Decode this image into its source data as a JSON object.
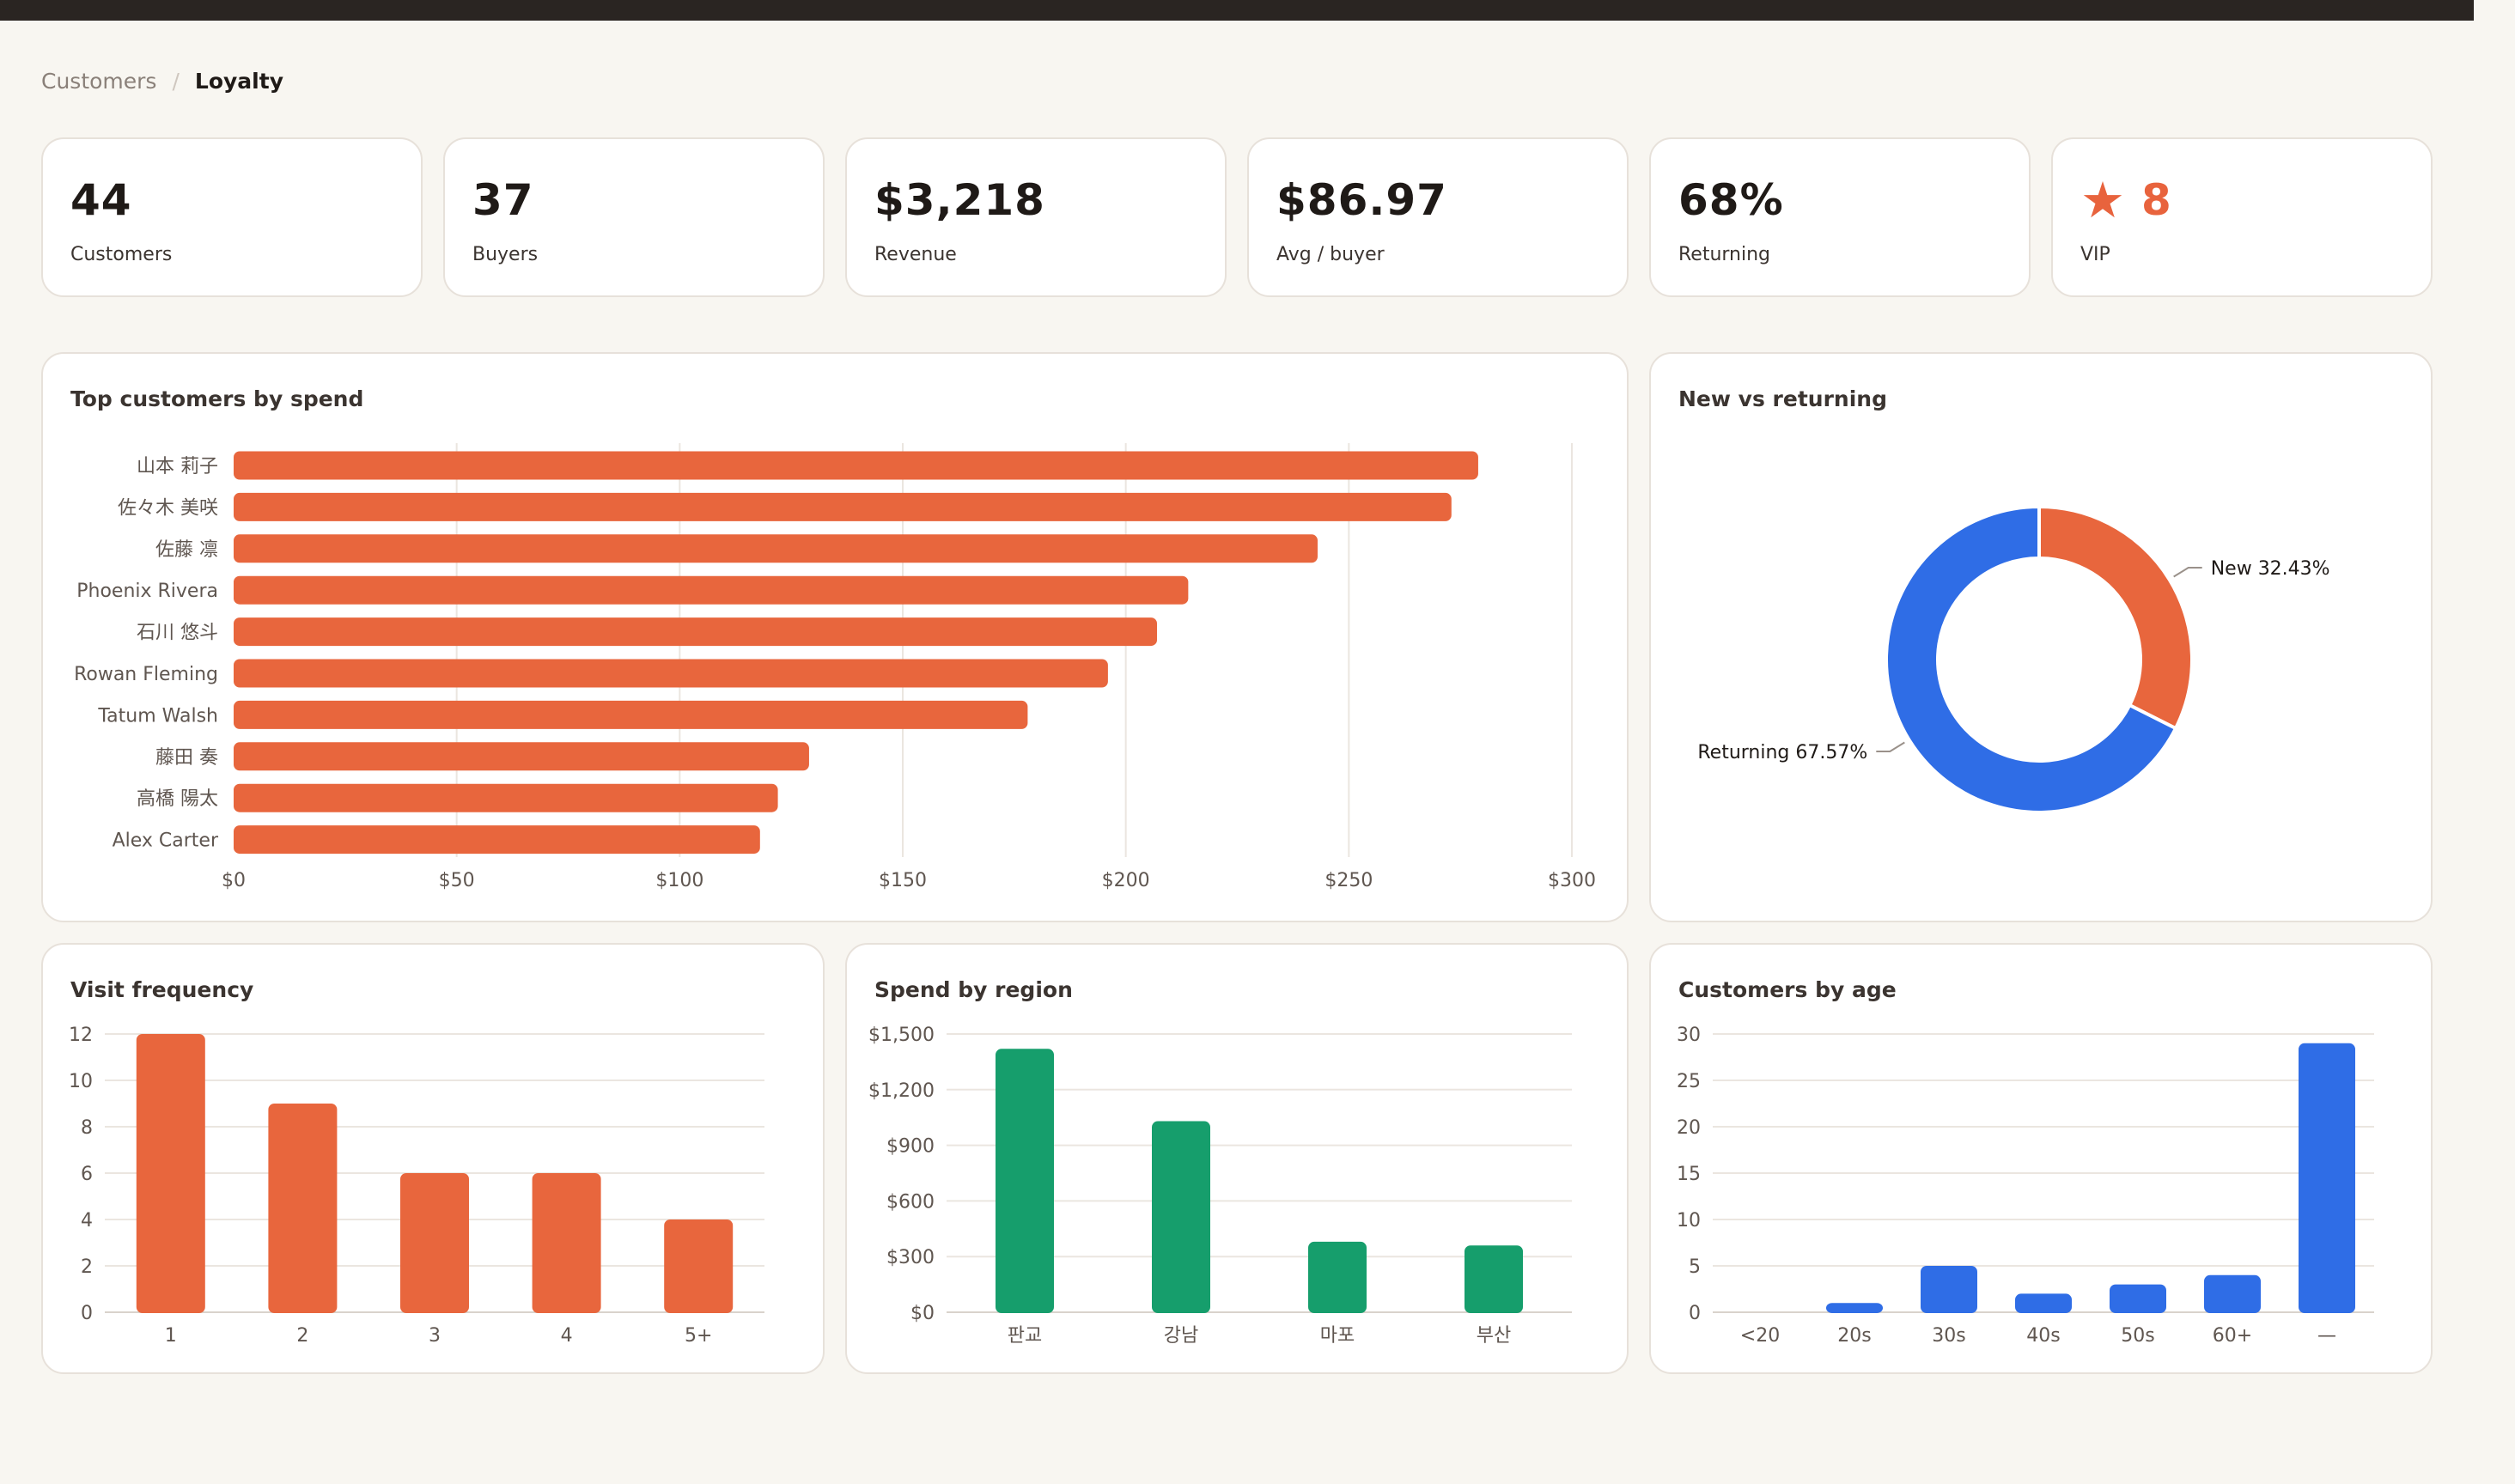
{
  "breadcrumb": {
    "parent": "Customers",
    "separator": "/",
    "current": "Loyalty"
  },
  "kpis": [
    {
      "value": "44",
      "label": "Customers"
    },
    {
      "value": "37",
      "label": "Buyers"
    },
    {
      "value": "$3,218",
      "label": "Revenue"
    },
    {
      "value": "$86.97",
      "label": "Avg / buyer"
    },
    {
      "value": "68%",
      "label": "Returning"
    },
    {
      "value": "8",
      "label": "VIP",
      "icon": "star-icon",
      "color": "#e8633d"
    }
  ],
  "panels": {
    "top_customers": "Top customers by spend",
    "new_vs_returning": "New vs returning",
    "visit_frequency": "Visit frequency",
    "spend_by_region": "Spend by region",
    "customers_by_age": "Customers by age"
  },
  "chart_data": [
    {
      "id": "top_customers",
      "type": "bar",
      "orientation": "horizontal",
      "categories": [
        "山本 莉子",
        "佐々木 美咲",
        "佐藤 凛",
        "Phoenix Rivera",
        "石川 悠斗",
        "Rowan Fleming",
        "Tatum Walsh",
        "藤田 奏",
        "高橋 陽太",
        "Alex Carter"
      ],
      "values": [
        279,
        273,
        243,
        214,
        207,
        196,
        178,
        129,
        122,
        118
      ],
      "xlim": [
        0,
        300
      ],
      "ticks": [
        "$0",
        "$50",
        "$100",
        "$150",
        "$200",
        "$250",
        "$300"
      ],
      "color": "#e8663d",
      "grid": true
    },
    {
      "id": "new_vs_returning",
      "type": "pie",
      "donut": true,
      "slices": [
        {
          "name": "New",
          "value": 32.43,
          "label": "32.43%",
          "color": "#e8663d"
        },
        {
          "name": "Returning",
          "value": 67.57,
          "label": "67.57%",
          "color": "#2f6de6"
        }
      ]
    },
    {
      "id": "visit_frequency",
      "type": "bar",
      "categories": [
        "1",
        "2",
        "3",
        "4",
        "5+"
      ],
      "values": [
        12,
        9,
        6,
        6,
        4
      ],
      "ylim": [
        0,
        12
      ],
      "ticks": [
        "0",
        "2",
        "4",
        "6",
        "8",
        "10",
        "12"
      ],
      "color": "#e8663d",
      "grid": true
    },
    {
      "id": "spend_by_region",
      "type": "bar",
      "categories": [
        "판교",
        "강남",
        "마포",
        "부산"
      ],
      "values": [
        1420,
        1030,
        380,
        360
      ],
      "ylim": [
        0,
        1500
      ],
      "ticks": [
        "$0",
        "$300",
        "$600",
        "$900",
        "$1,200",
        "$1,500"
      ],
      "color": "#169e6c",
      "grid": true
    },
    {
      "id": "customers_by_age",
      "type": "bar",
      "categories": [
        "<20",
        "20s",
        "30s",
        "40s",
        "50s",
        "60+",
        "—"
      ],
      "values": [
        0,
        1,
        5,
        2,
        3,
        4,
        29
      ],
      "ylim": [
        0,
        30
      ],
      "ticks": [
        "0",
        "5",
        "10",
        "15",
        "20",
        "25",
        "30"
      ],
      "color": "#2f6de6",
      "grid": true
    }
  ]
}
